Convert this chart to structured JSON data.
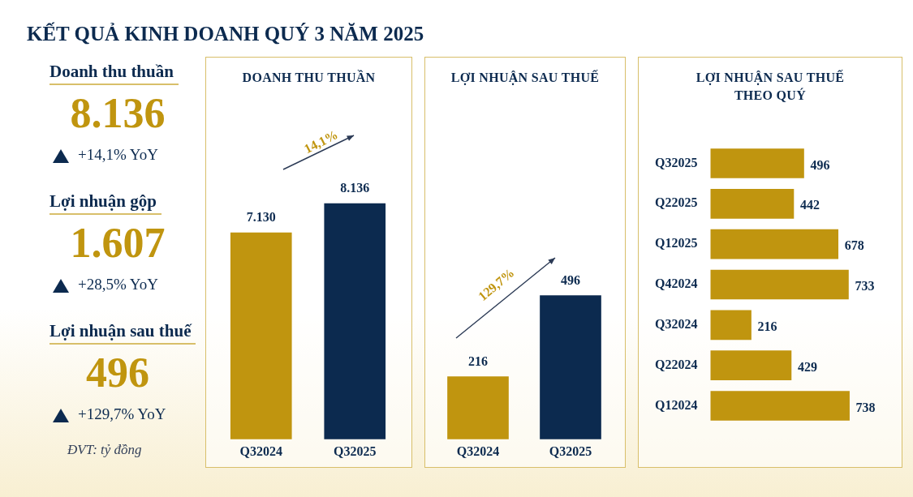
{
  "chart_data": [
    {
      "type": "other",
      "title": "KẾT QUẢ KINH DOANH QUÝ 3 NĂM 2025",
      "annotations": [
        "Doanh thu thuần",
        "8.136",
        "+14,1% YoY",
        "Lợi nhuận gộp",
        "1.607",
        "+28,5% YoY",
        "Lợi nhuận sau thuế",
        "496",
        "+129,7% YoY",
        "ĐVT: tỷ đồng"
      ]
    },
    {
      "type": "bar",
      "title": "DOANH THU THUẦN",
      "categories": [
        "Q32024",
        "Q32025"
      ],
      "values": [
        7130,
        8136
      ],
      "colors": [
        "#c0950f",
        "#0c2a4f"
      ],
      "value_labels": [
        "7.130",
        "8.136"
      ],
      "annotations": [
        "14,1%"
      ],
      "grid": false,
      "legend": false,
      "tick_labels": "x"
    },
    {
      "type": "bar",
      "title": "LỢI NHUẬN SAU THUẾ",
      "categories": [
        "Q32024",
        "Q32025"
      ],
      "values": [
        216,
        496
      ],
      "colors": [
        "#c0950f",
        "#0c2a4f"
      ],
      "data_labels": true,
      "annotations": [
        "129,7%"
      ],
      "grid": false,
      "legend": false,
      "tick_labels": "x"
    },
    {
      "type": "bar",
      "orientation": "horizontal",
      "title": "LỢI NHUẬN SAU THUẾ\nTHEO QUÝ",
      "categories": [
        "Q32025",
        "Q22025",
        "Q12025",
        "Q42024",
        "Q32024",
        "Q22024",
        "Q12024"
      ],
      "values": [
        496,
        442,
        678,
        733,
        216,
        429,
        738
      ],
      "color": "#c0950f",
      "data_labels": true,
      "grid": false,
      "legend": false,
      "tick_labels": "y"
    }
  ]
}
